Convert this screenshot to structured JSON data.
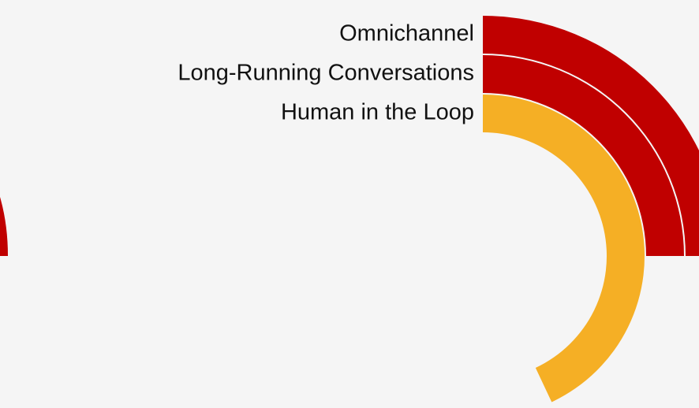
{
  "chart_data": {
    "type": "radialBar",
    "categories": [
      "Omnichannel",
      "Long-Running Conversations",
      "Human in the Loop"
    ],
    "values": [
      25,
      25,
      43
    ],
    "colors": [
      "#c00000",
      "#c00000",
      "#f5af25"
    ],
    "max": 100
  }
}
